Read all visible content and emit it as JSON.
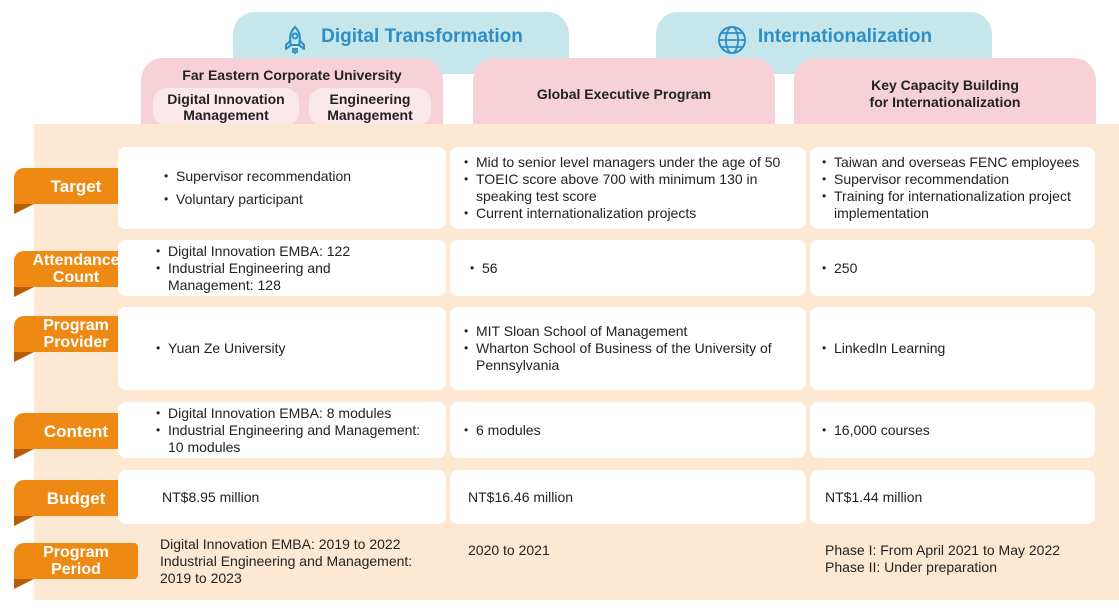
{
  "categories": [
    {
      "label": "Digital Transformation",
      "icon": "rocket-icon"
    },
    {
      "label": "Internationalization",
      "icon": "globe-icon"
    }
  ],
  "programs": {
    "col1": {
      "title": "Far Eastern Corporate University",
      "sub1": "Digital Innovation\nManagement",
      "sub2": "Engineering\nManagement"
    },
    "col2": {
      "title": "Global Executive Program"
    },
    "col3": {
      "title": "Key Capacity Building\nfor Internationalization"
    }
  },
  "rows": {
    "target": {
      "label": "Target",
      "col1": [
        "Supervisor recommendation",
        "Voluntary participant"
      ],
      "col2": [
        "Mid to senior level managers under the age of 50",
        "TOEIC score above 700 with minimum 130 in speaking test score",
        "Current internationalization projects"
      ],
      "col3": [
        "Taiwan and overseas FENC employees",
        "Supervisor recommendation",
        "Training for internationalization project implementation"
      ]
    },
    "attendance": {
      "label": "Attendance\nCount",
      "col1": [
        "Digital Innovation EMBA: 122",
        "Industrial Engineering and Management: 128"
      ],
      "col2": [
        "56"
      ],
      "col3": [
        "250"
      ]
    },
    "provider": {
      "label": "Program\nProvider",
      "col1": [
        "Yuan Ze University"
      ],
      "col2": [
        "MIT Sloan School of Management",
        "Wharton School of Business of the University of Pennsylvania"
      ],
      "col3": [
        "LinkedIn Learning"
      ]
    },
    "content": {
      "label": "Content",
      "col1": [
        "Digital Innovation EMBA: 8 modules",
        "Industrial Engineering and Management: 10 modules"
      ],
      "col2": [
        "6 modules"
      ],
      "col3": [
        "16,000 courses"
      ]
    },
    "budget": {
      "label": "Budget",
      "col1": "NT$8.95 million",
      "col2": "NT$16.46 million",
      "col3": "NT$1.44 million"
    },
    "period": {
      "label": "Program\nPeriod",
      "col1": "Digital Innovation EMBA: 2019 to 2022\nIndustrial Engineering and Management:\n2019 to 2023",
      "col2": "2020 to 2021",
      "col3": "Phase I: From April 2021 to May 2022\nPhase II: Under preparation"
    }
  },
  "colors": {
    "teal": "#c5e6ea",
    "teal_text": "#2e8fc6",
    "pink": "#f6d2d8",
    "beige": "#fde9d3",
    "orange": "#ee8a14"
  }
}
